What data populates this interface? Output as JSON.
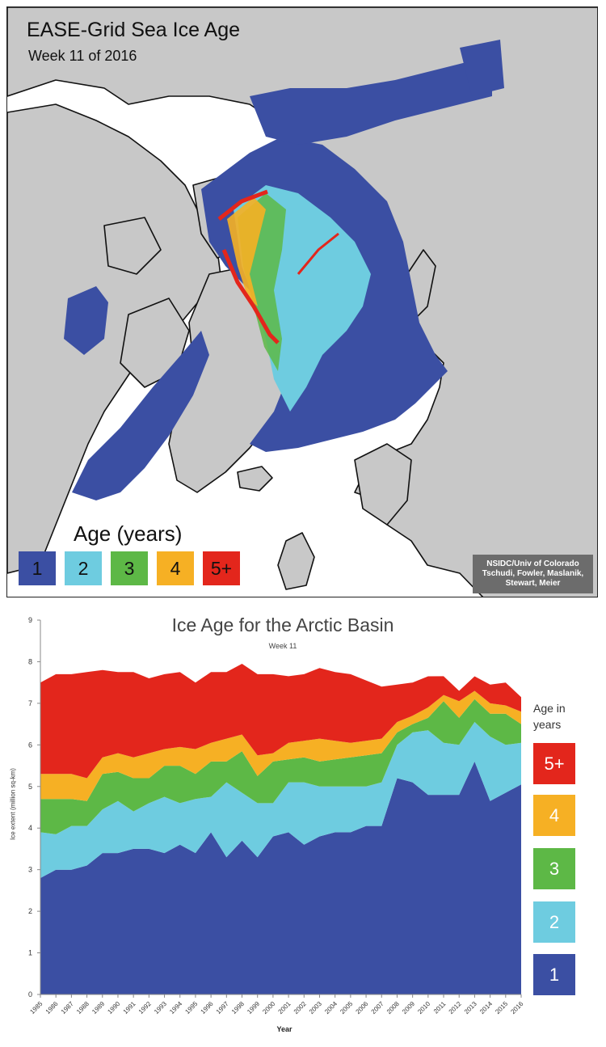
{
  "map": {
    "title": "EASE-Grid Sea Ice Age",
    "subtitle": "Week 11 of 2016",
    "legend_title": "Age (years)",
    "legend": [
      {
        "label": "1",
        "color": "#3b4fa3"
      },
      {
        "label": "2",
        "color": "#6ecce0"
      },
      {
        "label": "3",
        "color": "#5db846"
      },
      {
        "label": "4",
        "color": "#f6b024"
      },
      {
        "label": "5+",
        "color": "#e3261c"
      }
    ],
    "credit": [
      "NSIDC/Univ of Colorado",
      "Tschudi, Fowler, Maslanik,",
      "Stewart, Meier"
    ],
    "colors": {
      "land": "#c8c8c8",
      "ocean": "#ffffff",
      "coast": "#111111"
    }
  },
  "chart_data": {
    "type": "area",
    "title": "Ice Age for the Arctic Basin",
    "subtitle": "Week 11",
    "xlabel": "Year",
    "ylabel": "Ice extent (million sq-km)",
    "ylim": [
      0,
      9
    ],
    "yticks": [
      0,
      1,
      2,
      3,
      4,
      5,
      6,
      7,
      8,
      9
    ],
    "grid": false,
    "stacked": true,
    "legend_title": "Age in years",
    "legend_position": "right",
    "x": [
      1985,
      1986,
      1987,
      1988,
      1989,
      1990,
      1991,
      1992,
      1993,
      1994,
      1995,
      1996,
      1997,
      1998,
      1999,
      2000,
      2001,
      2002,
      2003,
      2004,
      2005,
      2006,
      2007,
      2008,
      2009,
      2010,
      2011,
      2012,
      2013,
      2014,
      2015,
      2016
    ],
    "series": [
      {
        "name": "1",
        "color": "#3b4fa3",
        "values": [
          2.8,
          3.0,
          3.0,
          3.1,
          3.4,
          3.4,
          3.5,
          3.5,
          3.4,
          3.6,
          3.4,
          3.9,
          3.3,
          3.7,
          3.3,
          3.8,
          3.9,
          3.6,
          3.8,
          3.9,
          3.9,
          4.05,
          4.05,
          5.2,
          5.1,
          4.8,
          4.8,
          4.8,
          5.6,
          4.65,
          4.85,
          5.05
        ]
      },
      {
        "name": "2",
        "color": "#6ecce0",
        "values": [
          1.1,
          0.85,
          1.05,
          0.95,
          1.05,
          1.25,
          0.9,
          1.1,
          1.35,
          1.0,
          1.3,
          0.85,
          1.8,
          1.15,
          1.3,
          0.8,
          1.2,
          1.5,
          1.2,
          1.1,
          1.1,
          0.95,
          1.05,
          0.8,
          1.2,
          1.55,
          1.25,
          1.2,
          0.95,
          1.55,
          1.15,
          1.0
        ]
      },
      {
        "name": "3",
        "color": "#5db846",
        "values": [
          0.8,
          0.85,
          0.65,
          0.6,
          0.85,
          0.7,
          0.8,
          0.6,
          0.75,
          0.9,
          0.6,
          0.85,
          0.5,
          1.0,
          0.65,
          1.0,
          0.55,
          0.6,
          0.6,
          0.65,
          0.7,
          0.75,
          0.7,
          0.3,
          0.2,
          0.3,
          1.0,
          0.65,
          0.55,
          0.55,
          0.75,
          0.45
        ]
      },
      {
        "name": "4",
        "color": "#f6b024",
        "values": [
          0.6,
          0.6,
          0.6,
          0.55,
          0.4,
          0.45,
          0.5,
          0.6,
          0.4,
          0.45,
          0.6,
          0.45,
          0.55,
          0.4,
          0.5,
          0.2,
          0.4,
          0.4,
          0.55,
          0.45,
          0.35,
          0.35,
          0.35,
          0.25,
          0.2,
          0.25,
          0.15,
          0.4,
          0.2,
          0.25,
          0.2,
          0.3
        ]
      },
      {
        "name": "5+",
        "color": "#e3261c",
        "values": [
          2.2,
          2.4,
          2.4,
          2.55,
          2.1,
          1.95,
          2.05,
          1.8,
          1.8,
          1.8,
          1.6,
          1.7,
          1.6,
          1.7,
          1.95,
          1.9,
          1.6,
          1.6,
          1.7,
          1.65,
          1.65,
          1.45,
          1.25,
          0.9,
          0.8,
          0.75,
          0.45,
          0.25,
          0.35,
          0.45,
          0.55,
          0.35
        ]
      }
    ]
  }
}
